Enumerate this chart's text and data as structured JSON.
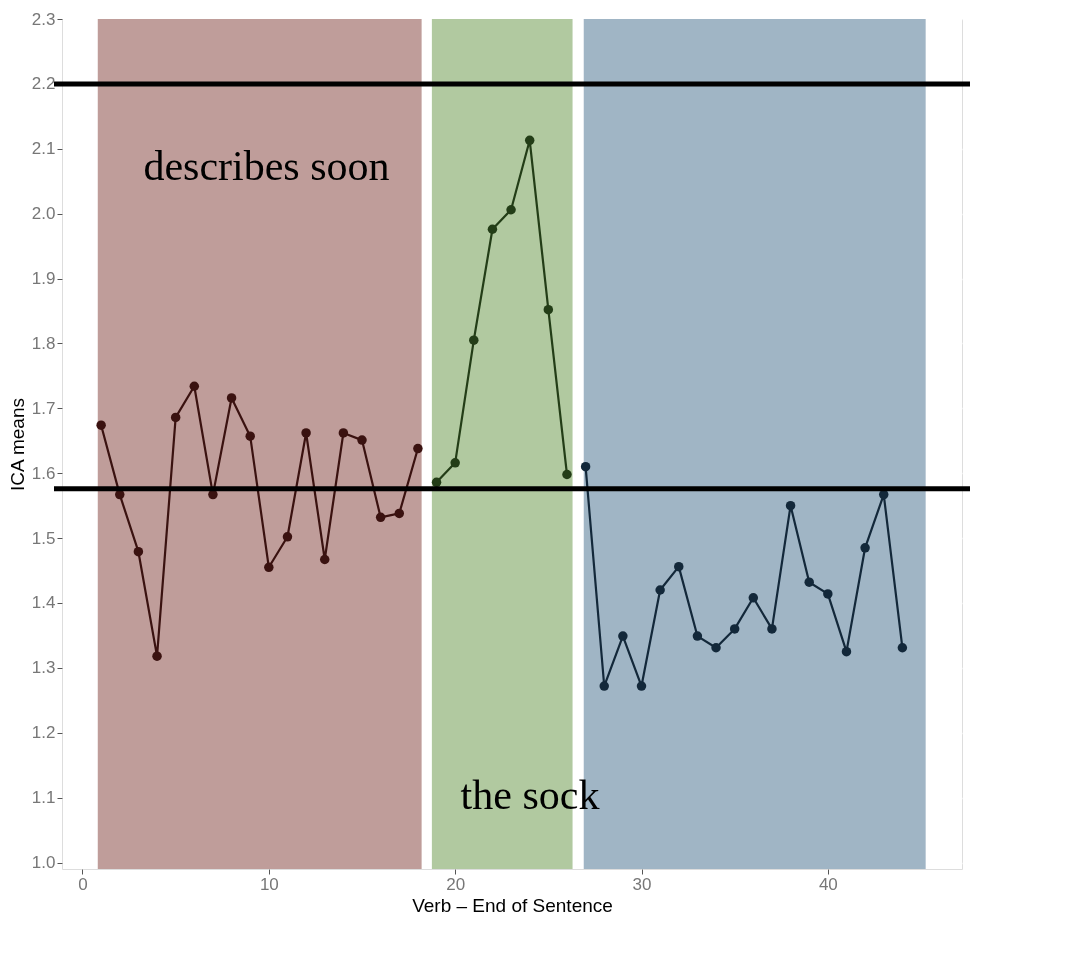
{
  "chart_data": {
    "type": "line",
    "xlabel": "Verb – End of Sentence",
    "ylabel": "ICA means",
    "xlim": [
      -1.1,
      47.2
    ],
    "ylim": [
      0.99,
      2.3
    ],
    "xticks": [
      0,
      10,
      20,
      30,
      40
    ],
    "yticks": [
      {
        "value": 1.0,
        "label": "1.0"
      },
      1.1,
      1.2,
      1.3,
      1.4,
      1.5,
      1.6,
      1.7,
      1.8,
      1.9,
      {
        "value": 2.0,
        "label": "2.0"
      },
      2.1,
      2.2,
      2.3
    ],
    "grid": true,
    "marker": "circle",
    "line_style": "solid",
    "series": [
      {
        "color": "#3a1210",
        "x": [
          1,
          2,
          3,
          4,
          5,
          6,
          7,
          8,
          9,
          10,
          11,
          12,
          13,
          14,
          15,
          16,
          17,
          18
        ],
        "values": [
          1.674,
          1.567,
          1.479,
          1.318,
          1.686,
          1.734,
          1.567,
          1.716,
          1.657,
          1.455,
          1.502,
          1.662,
          1.467,
          1.662,
          1.651,
          1.532,
          1.538,
          1.638
        ]
      },
      {
        "color": "#233d17",
        "x": [
          19,
          20,
          21,
          22,
          23,
          24,
          25,
          26
        ],
        "values": [
          1.586,
          1.616,
          1.805,
          1.976,
          2.006,
          2.113,
          1.852,
          1.598
        ]
      },
      {
        "color": "#13283a",
        "x": [
          27,
          28,
          29,
          30,
          31,
          32,
          33,
          34,
          35,
          36,
          37,
          38,
          39,
          40,
          41,
          42,
          43,
          44
        ],
        "values": [
          1.61,
          1.272,
          1.349,
          1.272,
          1.42,
          1.456,
          1.349,
          1.331,
          1.36,
          1.408,
          1.36,
          1.55,
          1.432,
          1.414,
          1.325,
          1.485,
          1.567,
          1.331
        ]
      }
    ],
    "bands": [
      {
        "axis": "x",
        "from": 0.82,
        "to": 18.2,
        "color": "#b48c88"
      },
      {
        "axis": "x",
        "from": 18.75,
        "to": 26.3,
        "color": "#a3bf8f"
      },
      {
        "axis": "x",
        "from": 26.9,
        "to": 45.25,
        "color": "#8fa8bb"
      }
    ],
    "ref_lines": [
      {
        "axis": "y",
        "value": 2.2,
        "color": "#000000"
      },
      {
        "axis": "y",
        "value": 1.576,
        "color": "#000000"
      }
    ],
    "annotations": [
      "describes soon",
      "the sock"
    ]
  }
}
